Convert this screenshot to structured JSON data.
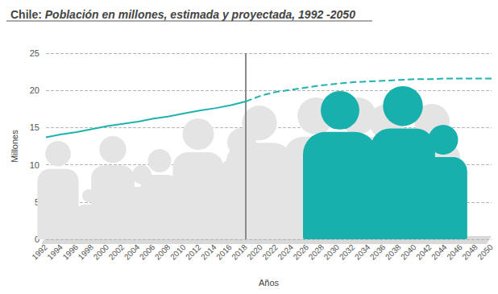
{
  "chart_data": {
    "type": "line",
    "title": "Chile: Población en millones, estimada y proyectada, 1992 -2050",
    "x_label": "Años",
    "y_label": "Millones",
    "categories": [
      "1992",
      "1994",
      "1996",
      "1998",
      "2000",
      "2002",
      "2004",
      "2006",
      "2008",
      "2010",
      "2012",
      "2014",
      "2016",
      "2018",
      "2020",
      "2022",
      "2024",
      "2026",
      "2028",
      "2030",
      "2032",
      "2034",
      "2036",
      "2038",
      "2040",
      "2042",
      "2044",
      "2046",
      "2048",
      "2050"
    ],
    "series": [
      {
        "color": "#1fb3b0",
        "line_style": "solid",
        "values": [
          13.7,
          14.1,
          14.4,
          14.8,
          15.2,
          15.5,
          15.8,
          16.2,
          16.5,
          16.9,
          17.3,
          17.6,
          18.0,
          18.5,
          null,
          null,
          null,
          null,
          null,
          null,
          null,
          null,
          null,
          null,
          null,
          null,
          null,
          null,
          null,
          null
        ]
      },
      {
        "color": "#1fb3b0",
        "line_style": "dashed",
        "values": [
          null,
          null,
          null,
          null,
          null,
          null,
          null,
          null,
          null,
          null,
          null,
          null,
          null,
          18.5,
          19.3,
          19.8,
          20.1,
          20.4,
          20.7,
          20.9,
          21.1,
          21.2,
          21.3,
          21.4,
          21.5,
          21.5,
          21.6,
          21.6,
          21.6,
          21.6
        ]
      }
    ],
    "vline": "2018",
    "ylim": [
      0,
      25
    ],
    "yticks": [
      0,
      5,
      10,
      15,
      20,
      25
    ],
    "grid": true
  }
}
